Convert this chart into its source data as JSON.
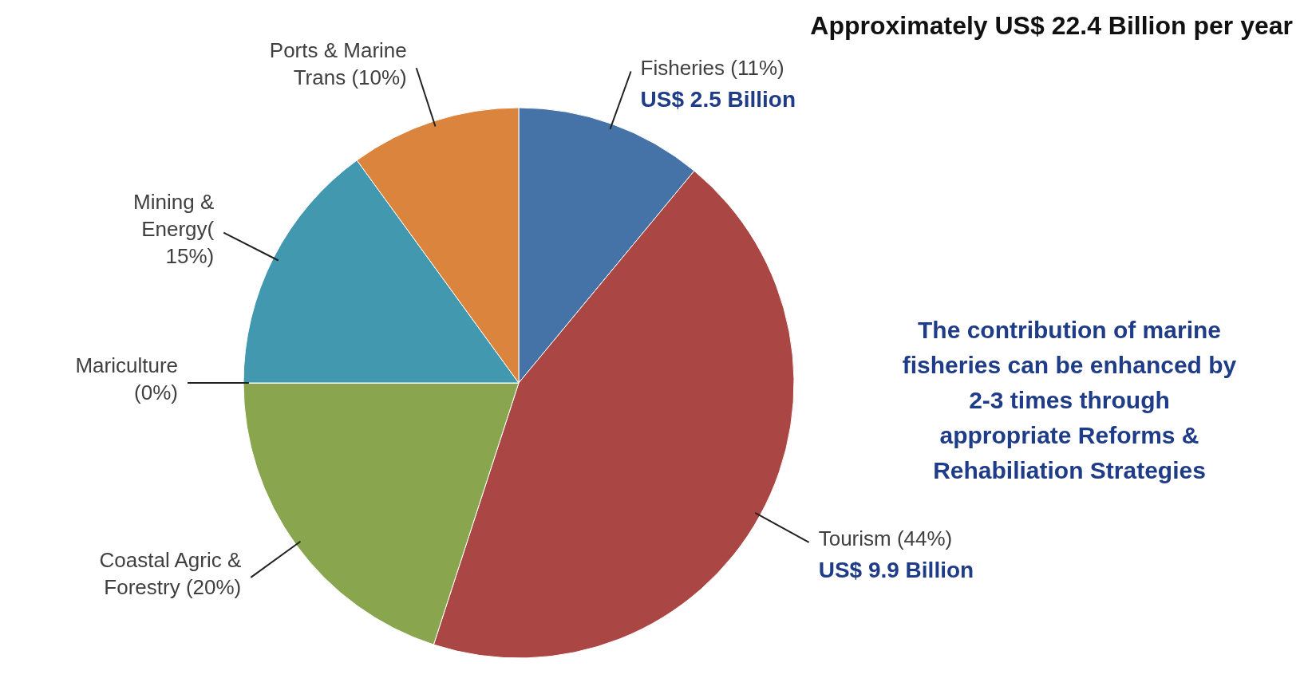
{
  "chart_data": {
    "type": "pie",
    "title": "Approximately US$ 22.4 Billion per year",
    "categories": [
      "Fisheries (11%)",
      "Tourism (44%)",
      "Coastal Agric &\nForestry (20%)",
      "Mariculture\n(0%)",
      "Mining &\nEnergy(\n15%)",
      "Ports & Marine\nTrans (10%)"
    ],
    "values": [
      11,
      44,
      20,
      0,
      15,
      10
    ],
    "colors": [
      "#4572a7",
      "#aa4643",
      "#89a54e",
      "#71588f",
      "#4198af",
      "#db843d"
    ],
    "annotations": [
      "US$ 2.5 Billion",
      "US$ 9.9 Billion",
      "The contribution of marine\nfisheries can be enhanced by\n2-3 times through\nappropriate Reforms &\nRehabiliation Strategies"
    ]
  }
}
